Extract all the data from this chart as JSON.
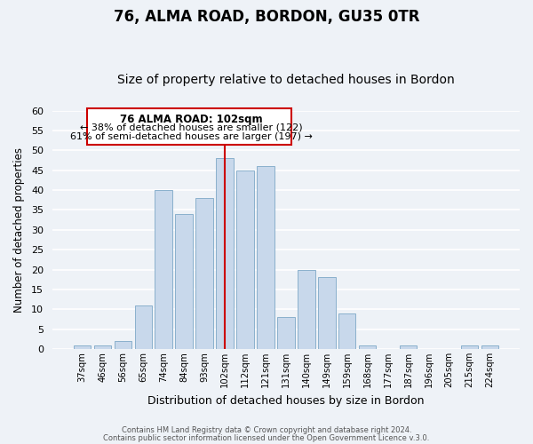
{
  "title": "76, ALMA ROAD, BORDON, GU35 0TR",
  "subtitle": "Size of property relative to detached houses in Bordon",
  "xlabel": "Distribution of detached houses by size in Bordon",
  "ylabel": "Number of detached properties",
  "categories": [
    "37sqm",
    "46sqm",
    "56sqm",
    "65sqm",
    "74sqm",
    "84sqm",
    "93sqm",
    "102sqm",
    "112sqm",
    "121sqm",
    "131sqm",
    "140sqm",
    "149sqm",
    "159sqm",
    "168sqm",
    "177sqm",
    "187sqm",
    "196sqm",
    "205sqm",
    "215sqm",
    "224sqm"
  ],
  "values": [
    1,
    1,
    2,
    11,
    40,
    34,
    38,
    48,
    45,
    46,
    8,
    20,
    18,
    9,
    1,
    0,
    1,
    0,
    0,
    1,
    1
  ],
  "bar_color": "#c8d8eb",
  "bar_edge_color": "#8ab0cc",
  "highlight_index": 7,
  "highlight_color": "#cc0000",
  "ylim": [
    0,
    60
  ],
  "yticks": [
    0,
    5,
    10,
    15,
    20,
    25,
    30,
    35,
    40,
    45,
    50,
    55,
    60
  ],
  "annotation_title": "76 ALMA ROAD: 102sqm",
  "annotation_line1": "← 38% of detached houses are smaller (122)",
  "annotation_line2": "61% of semi-detached houses are larger (197) →",
  "footer1": "Contains HM Land Registry data © Crown copyright and database right 2024.",
  "footer2": "Contains public sector information licensed under the Open Government Licence v.3.0.",
  "background_color": "#eef2f7",
  "plot_background": "#eef2f7",
  "grid_color": "#ffffff",
  "title_fontsize": 12,
  "subtitle_fontsize": 10,
  "annotation_box_edge": "#cc0000"
}
